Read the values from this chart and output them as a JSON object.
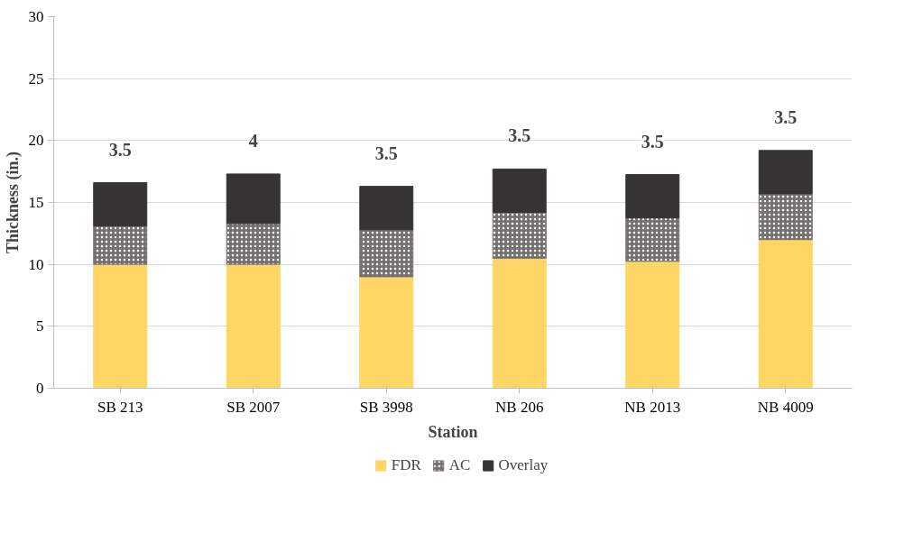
{
  "chart_data": {
    "type": "bar",
    "stacked": true,
    "xlabel": "Station",
    "ylabel": "Thickness (in.)",
    "categories": [
      "SB 213",
      "SB 2007",
      "SB 3998",
      "NB 206",
      "NB 2013",
      "NB 4009"
    ],
    "series": [
      {
        "name": "FDR",
        "color": "#fdd666",
        "values": [
          10,
          10,
          9,
          10.5,
          10.25,
          12
        ]
      },
      {
        "name": "AC",
        "color": "#767171",
        "values": [
          3.1,
          3.3,
          3.8,
          3.7,
          3.5,
          3.7
        ]
      },
      {
        "name": "Overlay",
        "color": "#363432",
        "values": [
          3.5,
          4,
          3.5,
          3.5,
          3.5,
          3.5
        ],
        "value_labels": [
          "3.5",
          "4",
          "3.5",
          "3.5",
          "3.5",
          "3.5"
        ]
      }
    ],
    "ylim": [
      0,
      30
    ],
    "yticks": [
      0,
      5,
      10,
      15,
      20,
      25,
      30
    ],
    "grid": "y",
    "legend": "bottom"
  }
}
